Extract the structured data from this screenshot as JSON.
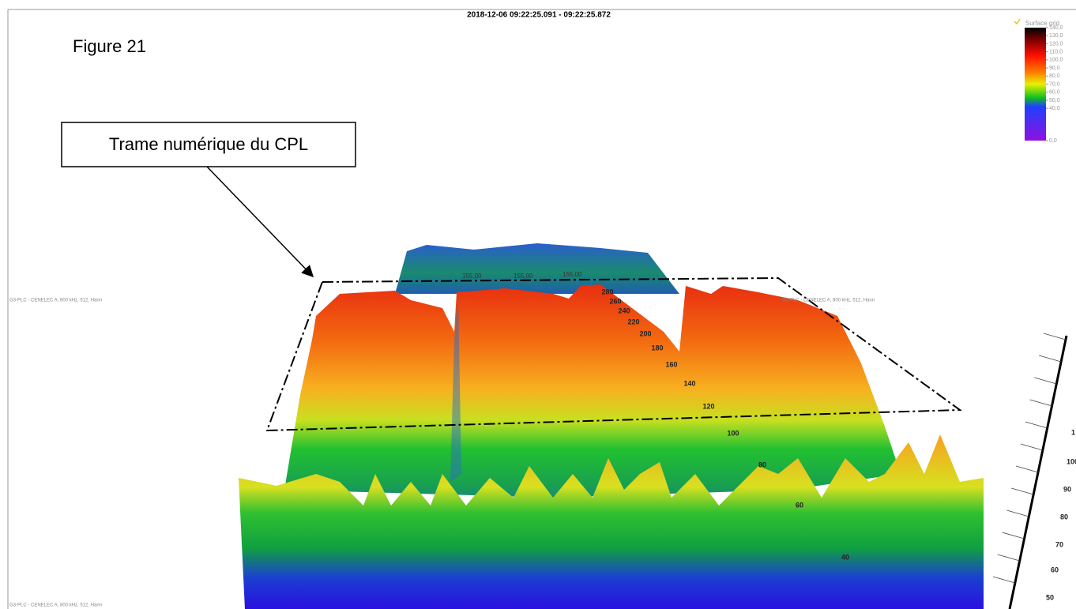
{
  "header": {
    "timestamp": "2018-12-06 09:22:25.091 - 09:22:25.872"
  },
  "figure_label": "Figure 21",
  "callout": "Trame numérique du CPL",
  "panel_labels": [
    "G3-PLC - CENELEC A, 800 kHz, 512, Hann",
    "G3-PLC - CENELEC A, 800 kHz, 512, Hann",
    "G3-PLC - CENELEC A, 800 kHz, 512, Hann"
  ],
  "colorbar": {
    "title": "Surface grid",
    "lim": [
      0,
      140
    ],
    "ticks": [
      {
        "value": 140,
        "label": "140,0"
      },
      {
        "value": 130,
        "label": "130,0"
      },
      {
        "value": 120,
        "label": "120,0"
      },
      {
        "value": 110,
        "label": "110,0"
      },
      {
        "value": 100,
        "label": "100,0"
      },
      {
        "value": 90,
        "label": "90,0"
      },
      {
        "value": 80,
        "label": "80,0"
      },
      {
        "value": 70,
        "label": "70,0"
      },
      {
        "value": 60,
        "label": "60,0"
      },
      {
        "value": 50,
        "label": "50,0"
      },
      {
        "value": 40,
        "label": "40,0"
      },
      {
        "value": 0,
        "label": "0,0"
      }
    ]
  },
  "back_labels": [
    "155,00",
    "155,00",
    "155,00"
  ],
  "depth_labels": [
    280,
    260,
    240,
    220,
    200,
    180,
    160,
    140,
    120,
    100,
    80,
    60,
    40
  ],
  "side_scale_labels": [
    1,
    100,
    90,
    80,
    70,
    60,
    50
  ]
}
